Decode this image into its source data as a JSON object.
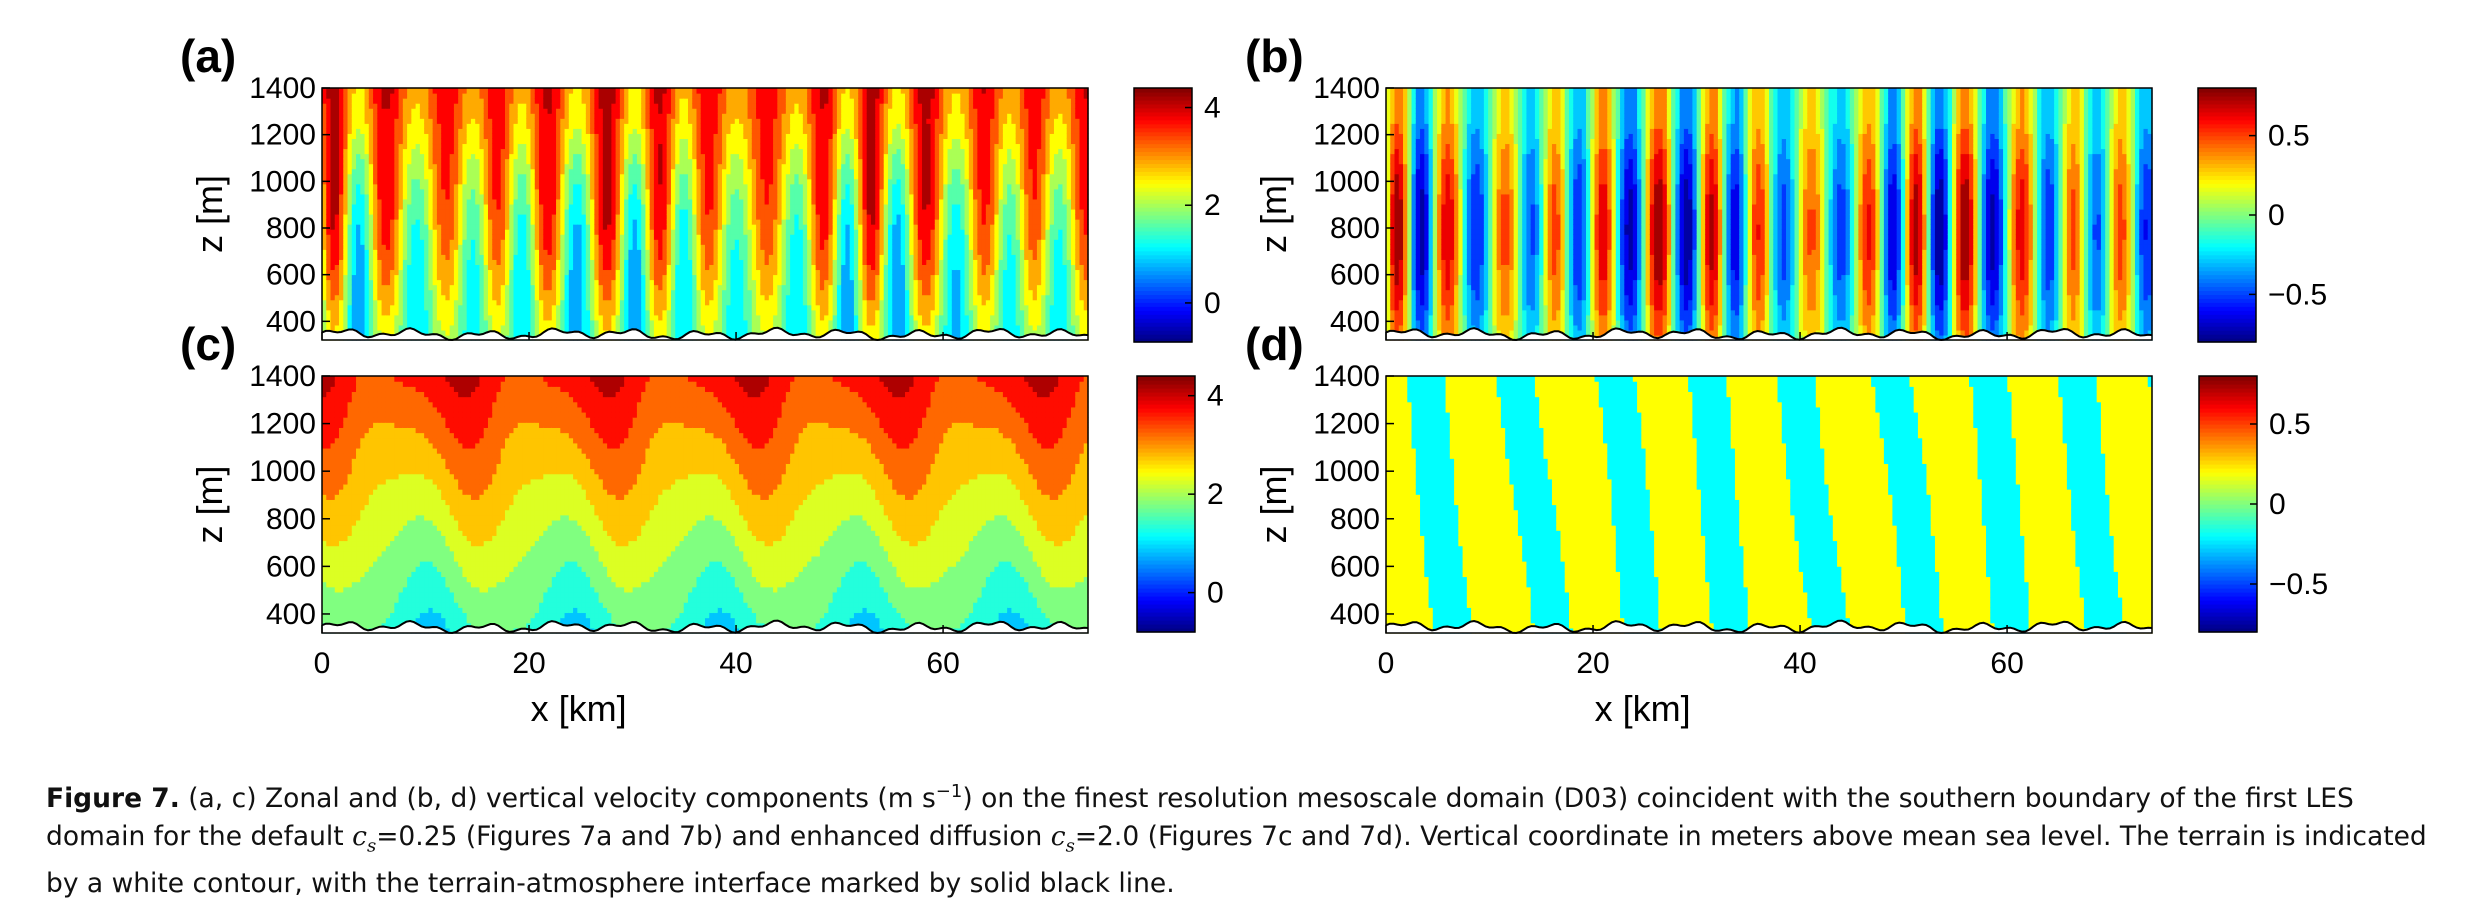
{
  "chart_data": [
    {
      "type": "heatmap",
      "panel_label": "(a)",
      "xlabel": "",
      "ylabel": "z [m]",
      "xlim": [
        0,
        74
      ],
      "ylim": [
        320,
        1400
      ],
      "x_ticks": [
        "0",
        "20",
        "40",
        "60"
      ],
      "y_ticks": [
        "400",
        "600",
        "800",
        "1000",
        "1200",
        "1400"
      ],
      "colorbar": {
        "range": [
          -0.8,
          4.4
        ],
        "ticks": [
          "0",
          "2",
          "4"
        ],
        "tick_values": [
          0,
          2,
          4
        ]
      },
      "field": {
        "base": 1.6,
        "vertical_gradient": 1.8,
        "band_amplitude": 1.6,
        "band_wavelength_km": 5.2,
        "smooth": false,
        "levels": 12
      }
    },
    {
      "type": "heatmap",
      "panel_label": "(b)",
      "xlabel": "",
      "ylabel": "z [m]",
      "xlim": [
        0,
        74
      ],
      "ylim": [
        320,
        1400
      ],
      "x_ticks": [
        "0",
        "20",
        "40",
        "60"
      ],
      "y_ticks": [
        "400",
        "600",
        "800",
        "1000",
        "1200",
        "1400"
      ],
      "colorbar": {
        "range": [
          -0.8,
          0.8
        ],
        "ticks": [
          "0.5",
          "0",
          "−0.5"
        ],
        "tick_values": [
          0.5,
          0,
          -0.5
        ]
      },
      "field": {
        "base": 0,
        "vertical_gradient": 0,
        "band_amplitude": 0.8,
        "band_wavelength_km": 5.0,
        "smooth": false,
        "levels": 14
      }
    },
    {
      "type": "heatmap",
      "panel_label": "(c)",
      "xlabel": "x [km]",
      "ylabel": "z [m]",
      "xlim": [
        0,
        74
      ],
      "ylim": [
        320,
        1400
      ],
      "x_ticks": [
        "0",
        "20",
        "40",
        "60"
      ],
      "y_ticks": [
        "400",
        "600",
        "800",
        "1000",
        "1200",
        "1400"
      ],
      "colorbar": {
        "range": [
          -0.8,
          4.4
        ],
        "ticks": [
          "4",
          "2",
          "0"
        ],
        "tick_values": [
          4,
          2,
          0
        ]
      },
      "field": {
        "base": 1.3,
        "vertical_gradient": 2.4,
        "band_amplitude": 0.35,
        "band_wavelength_km": 14,
        "smooth": true,
        "levels": 11
      }
    },
    {
      "type": "heatmap",
      "panel_label": "(d)",
      "xlabel": "x [km]",
      "ylabel": "z [m]",
      "xlim": [
        0,
        74
      ],
      "ylim": [
        320,
        1400
      ],
      "x_ticks": [
        "0",
        "20",
        "40",
        "60"
      ],
      "y_ticks": [
        "400",
        "600",
        "800",
        "1000",
        "1200",
        "1400"
      ],
      "colorbar": {
        "range": [
          -0.8,
          0.8
        ],
        "ticks": [
          "0.5",
          "0",
          "−0.5"
        ],
        "tick_values": [
          0.5,
          0,
          -0.5
        ]
      },
      "field": {
        "base": 0.02,
        "vertical_gradient": 0,
        "band_amplitude": 0.07,
        "band_wavelength_km": 9,
        "smooth": true,
        "levels": 4
      }
    }
  ],
  "caption": {
    "label": "Figure 7.",
    "part1": " (a, c) Zonal and (b, d) vertical velocity components (m s",
    "superscript": "−1",
    "part2": ") on the finest resolution mesoscale domain (D03) coincident with the southern boundary of the first LES domain for the default ",
    "cs_symbol": "c",
    "cs_subscript": "s",
    "cs_default": "=0.25",
    "part3": " (Figures 7a and 7b) and enhanced diffusion ",
    "cs_enhanced": "=2.0",
    "part4": " (Figures 7c and 7d). Vertical coordinate in meters above mean sea level. The terrain is indicated by a white contour, with the terrain-atmosphere interface marked by solid black line."
  }
}
